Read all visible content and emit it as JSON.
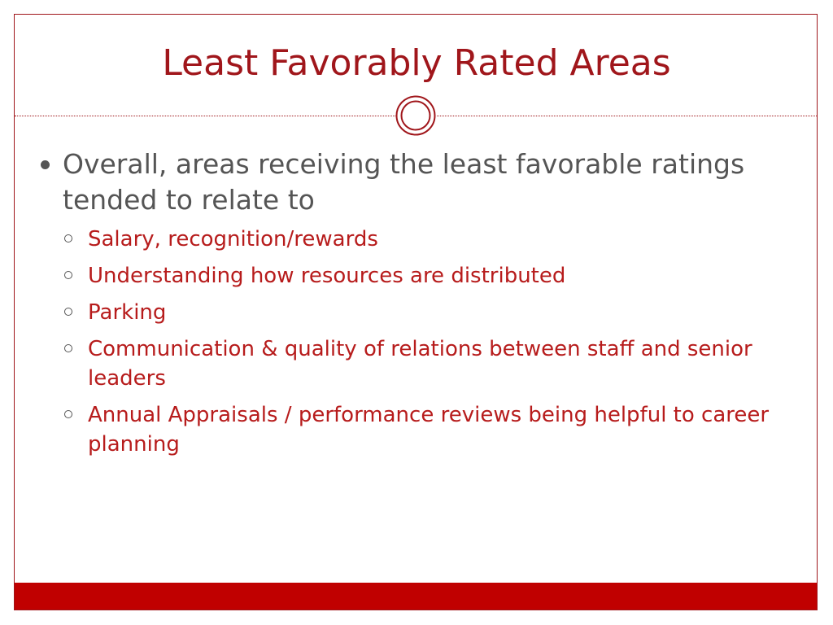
{
  "slide": {
    "title": "Least Favorably Rated Areas",
    "main_point": "Overall, areas receiving the least favorable ratings tended to relate to",
    "sub_points": [
      "Salary, recognition/rewards",
      "Understanding how resources are distributed",
      "Parking",
      "Communication & quality of relations between staff and senior leaders",
      "Annual Appraisals / performance reviews being helpful to career planning"
    ]
  },
  "theme": {
    "accent": "#a0161b",
    "footer_bar": "#c00000",
    "body_text": "#555555",
    "sub_text": "#b71c1c"
  },
  "icons": {
    "ornament": "double-circle-icon",
    "level1_bullet": "filled-circle-bullet-icon",
    "level2_bullet": "hollow-circle-bullet-icon"
  }
}
